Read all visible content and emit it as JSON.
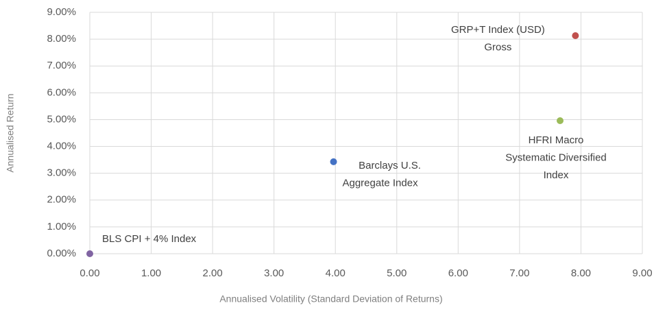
{
  "chart_data": {
    "type": "scatter",
    "x_label": "Annualised Volatility (Standard Deviation of Returns)",
    "y_label": "Annualised Return",
    "series": [
      {
        "name": [
          "BLS CPI + 4% Index"
        ],
        "color": "#8064a2",
        "x": [
          0
        ],
        "values": [
          0
        ]
      },
      {
        "name": [
          "Barclays U.S.",
          "Aggregate Index"
        ],
        "color": "#4472c4",
        "x": [
          3.97
        ],
        "values": [
          3.43
        ]
      },
      {
        "name": [
          "HFRI Macro",
          "Systematic Diversified",
          "Index"
        ],
        "color": "#9bbb59",
        "x": [
          7.66
        ],
        "values": [
          4.96
        ]
      },
      {
        "name": [
          "GRP+T Index (USD)",
          "Gross"
        ],
        "color": "#c0504d",
        "x": [
          7.91
        ],
        "values": [
          8.13
        ]
      }
    ],
    "xlim": [
      0,
      9
    ],
    "xticks": [
      {
        "value": 0,
        "label": "0.00"
      },
      {
        "value": 1,
        "label": "1.00"
      },
      {
        "value": 2,
        "label": "2.00"
      },
      {
        "value": 3,
        "label": "3.00"
      },
      {
        "value": 4,
        "label": "4.00"
      },
      {
        "value": 5,
        "label": "5.00"
      },
      {
        "value": 6,
        "label": "6.00"
      },
      {
        "value": 7,
        "label": "7.00"
      },
      {
        "value": 8,
        "label": "8.00"
      },
      {
        "value": 9,
        "label": "9.00"
      }
    ],
    "ylim": [
      0,
      9
    ],
    "yticks": [
      {
        "value": 0,
        "label": "0.00%"
      },
      {
        "value": 1,
        "label": "1.00%"
      },
      {
        "value": 2,
        "label": "2.00%"
      },
      {
        "value": 3,
        "label": "3.00%"
      },
      {
        "value": 4,
        "label": "4.00%"
      },
      {
        "value": 5,
        "label": "5.00%"
      },
      {
        "value": 6,
        "label": "6.00%"
      },
      {
        "value": 7,
        "label": "7.00%"
      },
      {
        "value": 8,
        "label": "8.00%"
      },
      {
        "value": 9,
        "label": "9.00%"
      }
    ],
    "grid": true
  }
}
